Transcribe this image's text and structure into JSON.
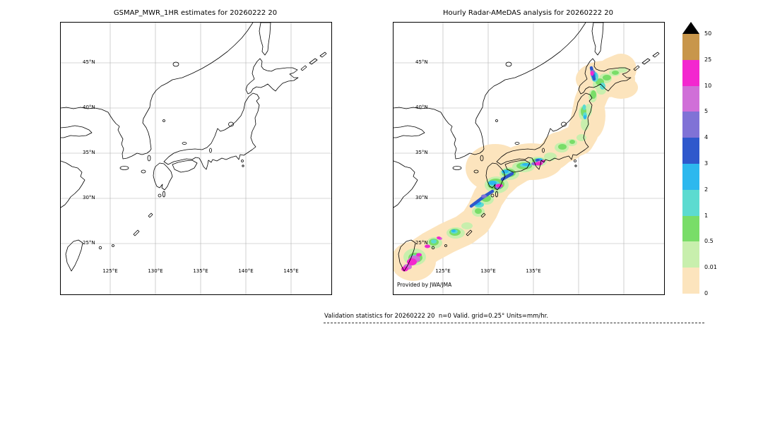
{
  "panels": [
    {
      "title": "GSMAP_MWR_1HR estimates for 20260222 20",
      "lat_ticks": [
        "45°N",
        "40°N",
        "35°N",
        "30°N",
        "25°N"
      ],
      "lon_ticks": [
        "125°E",
        "130°E",
        "135°E",
        "140°E",
        "145°E"
      ],
      "credit": ""
    },
    {
      "title": "Hourly Radar-AMeDAS analysis for 20260222 20",
      "lat_ticks": [
        "45°N",
        "40°N",
        "35°N",
        "30°N",
        "25°N"
      ],
      "lon_ticks": [
        "125°E",
        "130°E",
        "135°E"
      ],
      "credit": "Provided by JWA/JMA"
    }
  ],
  "colorbar": {
    "labels": [
      "50",
      "25",
      "10",
      "5",
      "4",
      "3",
      "2",
      "1",
      "0.5",
      "0.01",
      "0"
    ],
    "colors_top_to_bottom": [
      "#c8964b",
      "#f327cf",
      "#d06fd8",
      "#8072d6",
      "#2f58cc",
      "#2db8ee",
      "#5cdbd0",
      "#79dd68",
      "#c8efad",
      "#fce4bd"
    ],
    "overflow_color": "#000000"
  },
  "footer": {
    "text": "Validation statistics for 20260222 20  n=0 Valid. grid=0.25° Units=mm/hr."
  },
  "chart_data": {
    "type": "heatmap",
    "maps": [
      {
        "title": "GSMAP_MWR_1HR estimates for 20260222 20",
        "projection": "lat-lon (plate carree), Japan region",
        "lon_ticks_deg_e": [
          125,
          130,
          135,
          140,
          145
        ],
        "lat_ticks_deg_n": [
          25,
          30,
          35,
          40,
          45
        ],
        "lon_range_deg_e": [
          119.5,
          149.5
        ],
        "lat_range_deg_n": [
          19.4,
          49.5
        ],
        "units": "mm/hr",
        "data": "empty — no satellite precipitation estimates plotted (n=0)"
      },
      {
        "title": "Hourly Radar-AMeDAS analysis for 20260222 20",
        "projection": "lat-lon (plate carree), Japan region",
        "lon_ticks_deg_e": [
          125,
          130,
          135
        ],
        "lat_ticks_deg_n": [
          25,
          30,
          35,
          40,
          45
        ],
        "lon_range_deg_e": [
          119.5,
          149.5
        ],
        "lat_range_deg_n": [
          19.4,
          49.5
        ],
        "units": "mm/hr",
        "credit": "Provided by JWA/JMA",
        "data": "light precipitation band (0.01–1 mm/hr, pale orange/green) sweeping SW–NE along the Japanese archipelago from Taiwan and the Ryukyu islands through Kyushu, Shikoku, Kinki, Kanto and Tohoku up to Hokkaido; embedded heavier cells: 10–25+ mm/hr (magenta) near northern Taiwan and the southern Ryukyus, 3–25 mm/hr (cyan/blue/magenta) streaks southwest of Kyushu near 30°N 128–131°E, 5–25 mm/hr cells over Shikoku/Kinki near 34°N 134–136°E, and 3–10 mm/hr cells over central Hokkaido near 43.5°N 142°E"
      }
    ],
    "colorbar": {
      "units": "mm/hr",
      "boundaries": [
        0,
        0.01,
        0.5,
        1,
        2,
        3,
        4,
        5,
        10,
        25,
        50
      ],
      "colors_low_to_high": [
        "#fce4bd",
        "#c8efad",
        "#79dd68",
        "#5cdbd0",
        "#2db8ee",
        "#2f58cc",
        "#8072d6",
        "#d06fd8",
        "#f327cf",
        "#c8964b"
      ],
      "overflow_above_max": "#000000",
      "legend_position": "right"
    },
    "footnote": "Validation statistics for 20260222 20  n=0 Valid. grid=0.25° Units=mm/hr."
  }
}
